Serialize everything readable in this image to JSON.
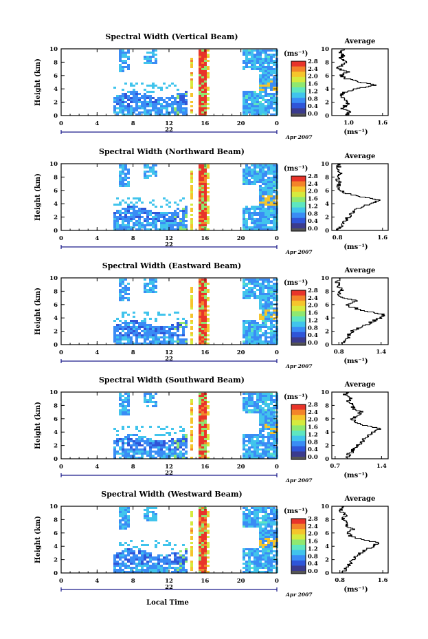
{
  "figure": {
    "units_label": "(ms⁻¹)",
    "time_axis_label": "Local Time",
    "date_suffix": "Apr 2007",
    "date_marker": "22",
    "y_axis_label": "Height (km)",
    "average_title": "Average",
    "average_unit": "(ms⁻¹)",
    "colorbar_ticks": [
      "0.0",
      "0.4",
      "0.8",
      "1.2",
      "1.6",
      "2.0",
      "2.4",
      "2.8"
    ]
  },
  "chart_data": [
    {
      "type": "heatmap",
      "title": "Spectral Width (Vertical Beam)",
      "xlabel": "",
      "ylabel": "Height (km)",
      "x_ticks": [
        "0",
        "4",
        "8",
        "12",
        "16",
        "20",
        "0"
      ],
      "y_ticks": [
        "0",
        "2",
        "4",
        "6",
        "8",
        "10"
      ],
      "xlim": [
        0,
        24
      ],
      "ylim": [
        0,
        10
      ],
      "colorbar_range": [
        0.0,
        2.8
      ],
      "average_profile": {
        "x_ticks": [
          "1.0",
          "1.6"
        ],
        "xlim": [
          0.7,
          1.7
        ],
        "heights": [
          0,
          0.5,
          1,
          1.5,
          2,
          2.5,
          3,
          3.5,
          4,
          4.5,
          5,
          5.5,
          6,
          6.5,
          7,
          7.5,
          8,
          8.5,
          9,
          9.5,
          10
        ],
        "values": [
          0.95,
          1.0,
          0.9,
          0.95,
          1.0,
          0.9,
          0.85,
          0.95,
          1.15,
          1.45,
          1.2,
          0.95,
          0.85,
          1.0,
          0.8,
          0.9,
          0.95,
          0.85,
          0.9,
          0.85,
          0.9
        ]
      }
    },
    {
      "type": "heatmap",
      "title": "Spectral Width (Northward Beam)",
      "xlabel": "",
      "ylabel": "Height (km)",
      "x_ticks": [
        "0",
        "4",
        "8",
        "12",
        "16",
        "20",
        "0"
      ],
      "y_ticks": [
        "0",
        "2",
        "4",
        "6",
        "8",
        "10"
      ],
      "xlim": [
        0,
        24
      ],
      "ylim": [
        0,
        10
      ],
      "colorbar_range": [
        0.0,
        2.8
      ],
      "average_profile": {
        "x_ticks": [
          "0.8",
          "1.6"
        ],
        "xlim": [
          0.7,
          1.7
        ],
        "heights": [
          0,
          0.5,
          1,
          1.5,
          2,
          2.5,
          3,
          3.5,
          4,
          4.5,
          5,
          5.5,
          6,
          6.5,
          7,
          7.5,
          8,
          8.5,
          9,
          9.5,
          10
        ],
        "values": [
          0.8,
          0.85,
          0.9,
          0.95,
          1.0,
          1.05,
          1.1,
          1.25,
          1.4,
          1.55,
          1.2,
          0.95,
          0.85,
          0.8,
          0.85,
          0.8,
          0.8,
          0.85,
          0.8,
          0.82,
          0.8
        ]
      }
    },
    {
      "type": "heatmap",
      "title": "Spectral Width (Eastward Beam)",
      "xlabel": "",
      "ylabel": "Height (km)",
      "x_ticks": [
        "0",
        "4",
        "8",
        "12",
        "16",
        "20",
        "0"
      ],
      "y_ticks": [
        "0",
        "2",
        "4",
        "6",
        "8",
        "10"
      ],
      "xlim": [
        0,
        24
      ],
      "ylim": [
        0,
        10
      ],
      "colorbar_range": [
        0.0,
        2.8
      ],
      "average_profile": {
        "x_ticks": [
          "0.8",
          "1.4"
        ],
        "xlim": [
          0.7,
          1.5
        ],
        "heights": [
          0,
          0.5,
          1,
          1.5,
          2,
          2.5,
          3,
          3.5,
          4,
          4.5,
          5,
          5.5,
          6,
          6.5,
          7,
          7.5,
          8,
          8.5,
          9,
          9.5,
          10
        ],
        "values": [
          0.85,
          0.9,
          0.95,
          0.95,
          1.0,
          1.1,
          1.2,
          1.3,
          1.4,
          1.45,
          1.15,
          1.0,
          0.9,
          1.05,
          0.85,
          0.8,
          0.85,
          0.8,
          0.8,
          0.78,
          0.8
        ]
      }
    },
    {
      "type": "heatmap",
      "title": "Spectral Width (Southward Beam)",
      "xlabel": "",
      "ylabel": "Height (km)",
      "x_ticks": [
        "0",
        "4",
        "8",
        "12",
        "16",
        "20",
        "0"
      ],
      "y_ticks": [
        "0",
        "2",
        "4",
        "6",
        "8",
        "10"
      ],
      "xlim": [
        0,
        24
      ],
      "ylim": [
        0,
        10
      ],
      "colorbar_range": [
        0.0,
        2.8
      ],
      "average_profile": {
        "x_ticks": [
          "0.7",
          "1.4"
        ],
        "xlim": [
          0.65,
          1.5
        ],
        "heights": [
          0,
          0.5,
          1,
          1.5,
          2,
          2.5,
          3,
          3.5,
          4,
          4.5,
          5,
          5.5,
          6,
          6.5,
          7,
          7.5,
          8,
          8.5,
          9,
          9.5,
          10
        ],
        "values": [
          0.85,
          0.9,
          0.95,
          1.0,
          1.05,
          1.1,
          1.15,
          1.2,
          1.3,
          1.4,
          1.15,
          1.0,
          0.95,
          1.05,
          1.1,
          0.95,
          1.0,
          0.9,
          0.95,
          0.85,
          0.9
        ]
      }
    },
    {
      "type": "heatmap",
      "title": "Spectral Width (Westward Beam)",
      "xlabel": "Local Time",
      "ylabel": "Height (km)",
      "x_ticks": [
        "0",
        "4",
        "8",
        "12",
        "16",
        "20",
        "0"
      ],
      "y_ticks": [
        "0",
        "2",
        "4",
        "6",
        "8",
        "10"
      ],
      "xlim": [
        0,
        24
      ],
      "ylim": [
        0,
        10
      ],
      "colorbar_range": [
        0.0,
        2.8
      ],
      "average_profile": {
        "x_ticks": [
          "0.8",
          "1.6"
        ],
        "xlim": [
          0.65,
          1.7
        ],
        "heights": [
          0,
          0.5,
          1,
          1.5,
          2,
          2.5,
          3,
          3.5,
          4,
          4.5,
          5,
          5.5,
          6,
          6.5,
          7,
          7.5,
          8,
          8.5,
          9,
          9.5,
          10
        ],
        "values": [
          0.85,
          0.9,
          0.95,
          1.0,
          1.05,
          1.1,
          1.2,
          1.3,
          1.45,
          1.5,
          1.2,
          1.0,
          0.95,
          1.05,
          0.9,
          0.95,
          0.85,
          0.9,
          0.85,
          0.8,
          0.85
        ]
      }
    }
  ]
}
